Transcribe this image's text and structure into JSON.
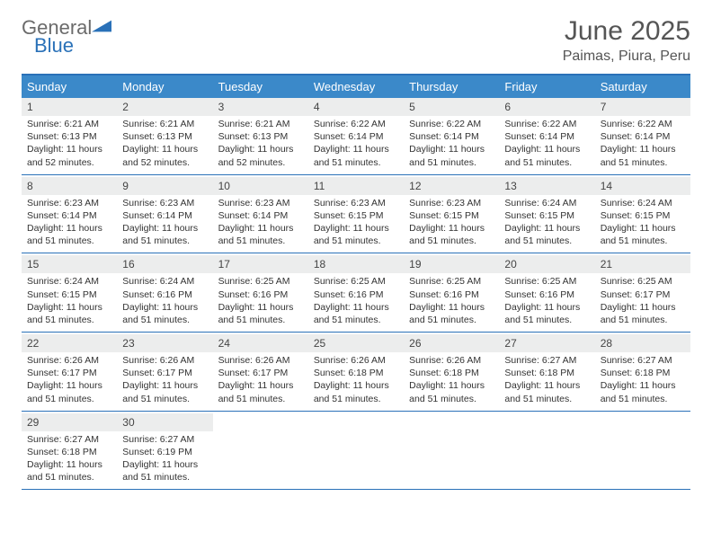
{
  "brand": {
    "part1": "General",
    "part2": "Blue"
  },
  "title": "June 2025",
  "location": "Paimas, Piura, Peru",
  "colors": {
    "accent": "#2a71b8",
    "header_bg": "#3b89c9",
    "daynum_bg": "#eceded",
    "text": "#333333"
  },
  "dow": [
    "Sunday",
    "Monday",
    "Tuesday",
    "Wednesday",
    "Thursday",
    "Friday",
    "Saturday"
  ],
  "days": [
    {
      "n": "1",
      "sr": "6:21 AM",
      "ss": "6:13 PM",
      "dl": "11 hours and 52 minutes."
    },
    {
      "n": "2",
      "sr": "6:21 AM",
      "ss": "6:13 PM",
      "dl": "11 hours and 52 minutes."
    },
    {
      "n": "3",
      "sr": "6:21 AM",
      "ss": "6:13 PM",
      "dl": "11 hours and 52 minutes."
    },
    {
      "n": "4",
      "sr": "6:22 AM",
      "ss": "6:14 PM",
      "dl": "11 hours and 51 minutes."
    },
    {
      "n": "5",
      "sr": "6:22 AM",
      "ss": "6:14 PM",
      "dl": "11 hours and 51 minutes."
    },
    {
      "n": "6",
      "sr": "6:22 AM",
      "ss": "6:14 PM",
      "dl": "11 hours and 51 minutes."
    },
    {
      "n": "7",
      "sr": "6:22 AM",
      "ss": "6:14 PM",
      "dl": "11 hours and 51 minutes."
    },
    {
      "n": "8",
      "sr": "6:23 AM",
      "ss": "6:14 PM",
      "dl": "11 hours and 51 minutes."
    },
    {
      "n": "9",
      "sr": "6:23 AM",
      "ss": "6:14 PM",
      "dl": "11 hours and 51 minutes."
    },
    {
      "n": "10",
      "sr": "6:23 AM",
      "ss": "6:14 PM",
      "dl": "11 hours and 51 minutes."
    },
    {
      "n": "11",
      "sr": "6:23 AM",
      "ss": "6:15 PM",
      "dl": "11 hours and 51 minutes."
    },
    {
      "n": "12",
      "sr": "6:23 AM",
      "ss": "6:15 PM",
      "dl": "11 hours and 51 minutes."
    },
    {
      "n": "13",
      "sr": "6:24 AM",
      "ss": "6:15 PM",
      "dl": "11 hours and 51 minutes."
    },
    {
      "n": "14",
      "sr": "6:24 AM",
      "ss": "6:15 PM",
      "dl": "11 hours and 51 minutes."
    },
    {
      "n": "15",
      "sr": "6:24 AM",
      "ss": "6:15 PM",
      "dl": "11 hours and 51 minutes."
    },
    {
      "n": "16",
      "sr": "6:24 AM",
      "ss": "6:16 PM",
      "dl": "11 hours and 51 minutes."
    },
    {
      "n": "17",
      "sr": "6:25 AM",
      "ss": "6:16 PM",
      "dl": "11 hours and 51 minutes."
    },
    {
      "n": "18",
      "sr": "6:25 AM",
      "ss": "6:16 PM",
      "dl": "11 hours and 51 minutes."
    },
    {
      "n": "19",
      "sr": "6:25 AM",
      "ss": "6:16 PM",
      "dl": "11 hours and 51 minutes."
    },
    {
      "n": "20",
      "sr": "6:25 AM",
      "ss": "6:16 PM",
      "dl": "11 hours and 51 minutes."
    },
    {
      "n": "21",
      "sr": "6:25 AM",
      "ss": "6:17 PM",
      "dl": "11 hours and 51 minutes."
    },
    {
      "n": "22",
      "sr": "6:26 AM",
      "ss": "6:17 PM",
      "dl": "11 hours and 51 minutes."
    },
    {
      "n": "23",
      "sr": "6:26 AM",
      "ss": "6:17 PM",
      "dl": "11 hours and 51 minutes."
    },
    {
      "n": "24",
      "sr": "6:26 AM",
      "ss": "6:17 PM",
      "dl": "11 hours and 51 minutes."
    },
    {
      "n": "25",
      "sr": "6:26 AM",
      "ss": "6:18 PM",
      "dl": "11 hours and 51 minutes."
    },
    {
      "n": "26",
      "sr": "6:26 AM",
      "ss": "6:18 PM",
      "dl": "11 hours and 51 minutes."
    },
    {
      "n": "27",
      "sr": "6:27 AM",
      "ss": "6:18 PM",
      "dl": "11 hours and 51 minutes."
    },
    {
      "n": "28",
      "sr": "6:27 AM",
      "ss": "6:18 PM",
      "dl": "11 hours and 51 minutes."
    },
    {
      "n": "29",
      "sr": "6:27 AM",
      "ss": "6:18 PM",
      "dl": "11 hours and 51 minutes."
    },
    {
      "n": "30",
      "sr": "6:27 AM",
      "ss": "6:19 PM",
      "dl": "11 hours and 51 minutes."
    }
  ],
  "labels": {
    "sunrise": "Sunrise:",
    "sunset": "Sunset:",
    "daylight": "Daylight:"
  }
}
